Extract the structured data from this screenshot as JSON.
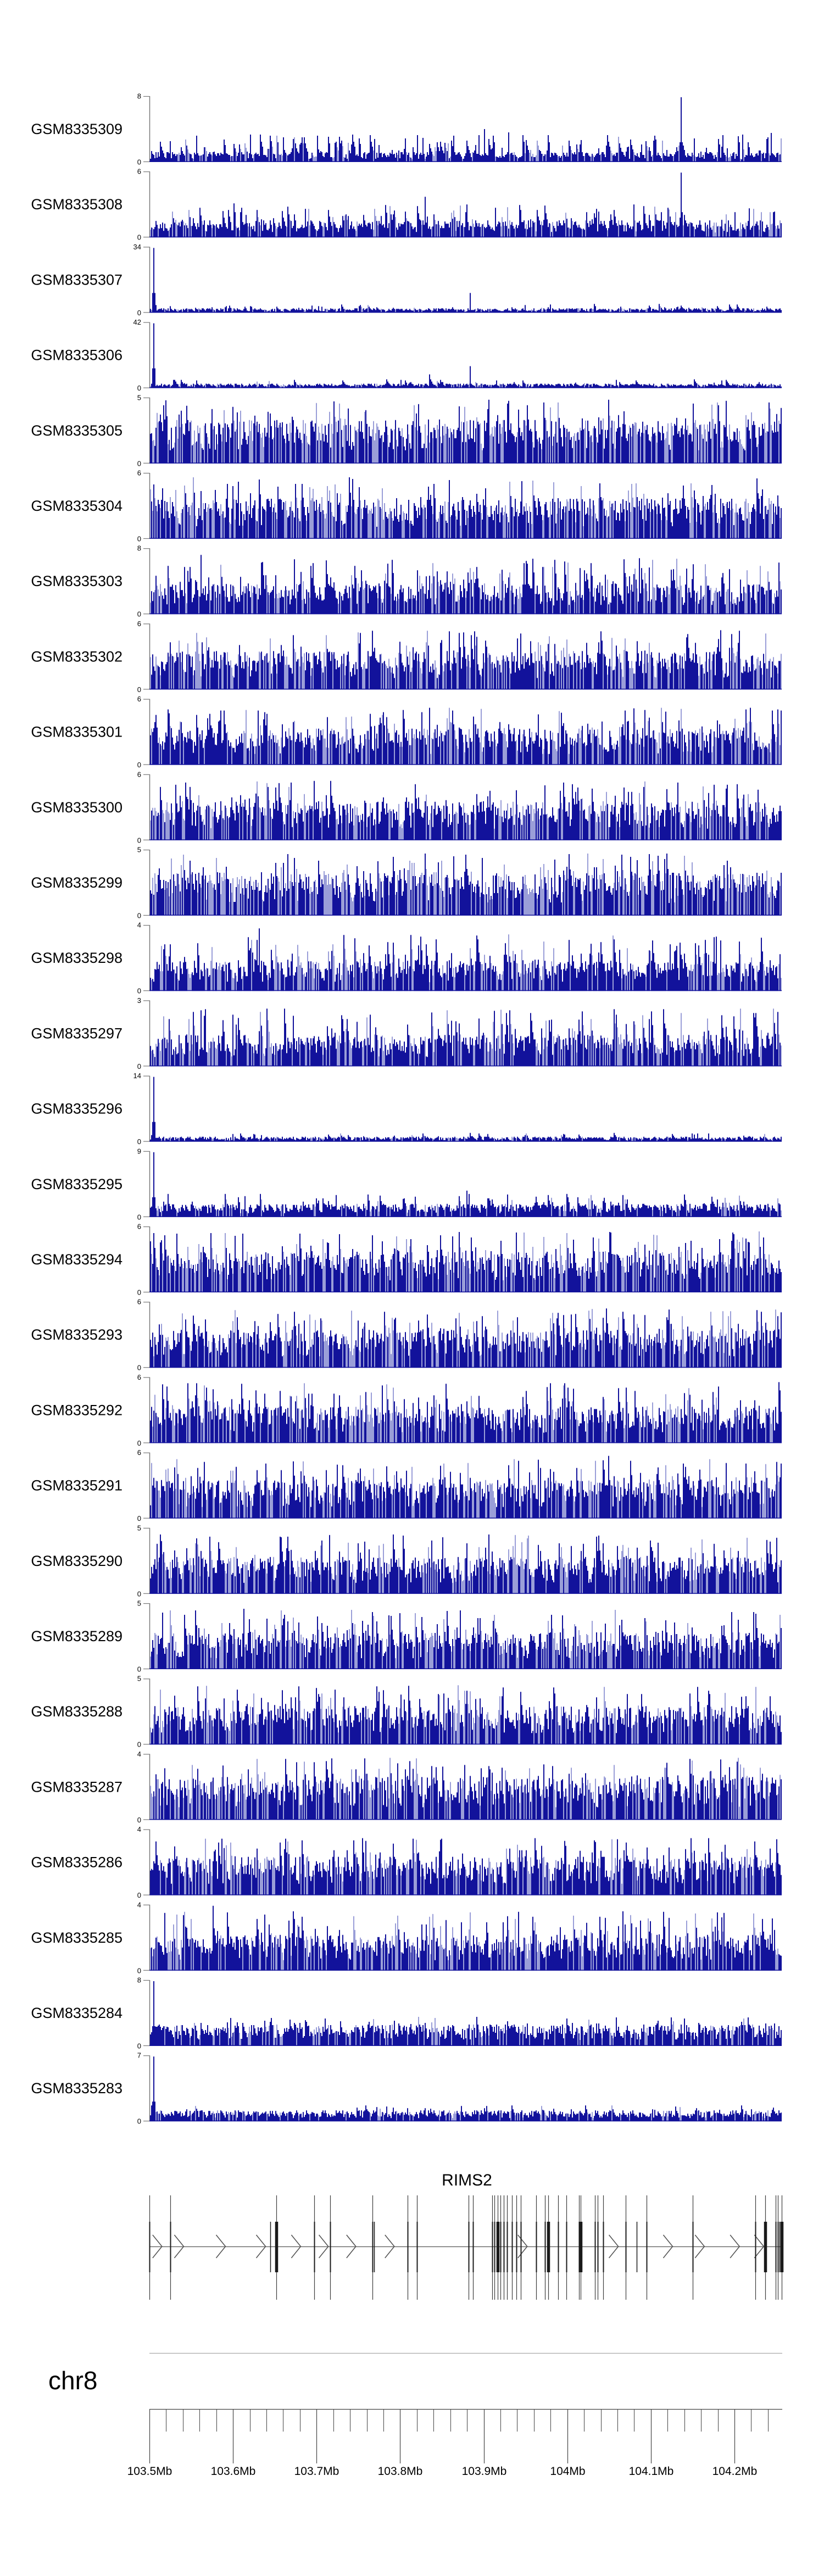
{
  "figure": {
    "background": "#ffffff"
  },
  "region": {
    "chrom_label": "chr8",
    "start_mb": 103.5,
    "end_mb": 104.2565
  },
  "ruler": {
    "major_tick_labels": [
      "103.5Mb",
      "103.6Mb",
      "103.7Mb",
      "103.8Mb",
      "103.9Mb",
      "104Mb",
      "104.1Mb",
      "104.2Mb"
    ],
    "major_tick_mb": [
      103.5,
      103.6,
      103.7,
      103.8,
      103.9,
      104.0,
      104.1,
      104.2
    ],
    "minor_step_mb": 0.02
  },
  "gene": {
    "name": "RIMS2",
    "strand": "+",
    "exons": [
      {
        "mb": 103.5,
        "type": "tall"
      },
      {
        "mb": 103.525,
        "type": "tall"
      },
      {
        "mb": 103.6446,
        "type": "short"
      },
      {
        "mb": 103.652,
        "type": "thick"
      },
      {
        "mb": 103.697,
        "type": "tall"
      },
      {
        "mb": 103.716,
        "type": "tall"
      },
      {
        "mb": 103.767,
        "type": "tall"
      },
      {
        "mb": 103.769,
        "type": "short"
      },
      {
        "mb": 103.809,
        "type": "tall"
      },
      {
        "mb": 103.82,
        "type": "tall"
      },
      {
        "mb": 103.882,
        "type": "tall"
      },
      {
        "mb": 103.887,
        "type": "tall"
      },
      {
        "mb": 103.91,
        "type": "tall"
      },
      {
        "mb": 103.913,
        "type": "tall"
      },
      {
        "mb": 103.917,
        "type": "thick"
      },
      {
        "mb": 103.92,
        "type": "tall"
      },
      {
        "mb": 103.924,
        "type": "tall"
      },
      {
        "mb": 103.928,
        "type": "tall"
      },
      {
        "mb": 103.934,
        "type": "tall"
      },
      {
        "mb": 103.939,
        "type": "tall"
      },
      {
        "mb": 103.944,
        "type": "tall"
      },
      {
        "mb": 103.963,
        "type": "tall"
      },
      {
        "mb": 103.973,
        "type": "tall"
      },
      {
        "mb": 103.977,
        "type": "thick"
      },
      {
        "mb": 103.989,
        "type": "tall"
      },
      {
        "mb": 103.999,
        "type": "tall"
      },
      {
        "mb": 104.014,
        "type": "tall"
      },
      {
        "mb": 104.016,
        "type": "thick"
      },
      {
        "mb": 104.033,
        "type": "tall"
      },
      {
        "mb": 104.036,
        "type": "tall"
      },
      {
        "mb": 104.043,
        "type": "tall"
      },
      {
        "mb": 104.07,
        "type": "tall"
      },
      {
        "mb": 104.083,
        "type": "short"
      },
      {
        "mb": 104.095,
        "type": "tall"
      },
      {
        "mb": 104.15,
        "type": "tall"
      },
      {
        "mb": 104.225,
        "type": "tall"
      },
      {
        "mb": 104.237,
        "type": "thick"
      },
      {
        "mb": 104.249,
        "type": "tall"
      },
      {
        "mb": 104.252,
        "type": "tall"
      },
      {
        "mb": 104.254,
        "type": "short"
      },
      {
        "mb": 104.2565,
        "type": "thick"
      }
    ],
    "arrows_mb": [
      103.515,
      103.541,
      103.591,
      103.639,
      103.681,
      103.714,
      103.747,
      103.793,
      103.952,
      104.061,
      104.126,
      104.164,
      104.206,
      104.235
    ]
  },
  "chart_data": {
    "type": "area",
    "title": "",
    "xlabel": "chr8 position (Mb)",
    "ylabel": "signal",
    "x_axis": {
      "start_mb": 103.5,
      "end_mb": 104.2565,
      "tick_labels": [
        "103.5Mb",
        "103.6Mb",
        "103.7Mb",
        "103.8Mb",
        "103.9Mb",
        "104Mb",
        "104.1Mb",
        "104.2Mb"
      ]
    },
    "tracks": [
      {
        "label": "GSM8335309",
        "ymin": 0,
        "ymax": 8,
        "profile": {
          "base": 0.1,
          "spike_prob": 0.22,
          "spike_max": 0.38,
          "light_prob": 0.15
        },
        "peaks": [
          {
            "mb": 104.137,
            "frac": 1.0
          },
          {
            "mb": 103.9,
            "frac": 0.5
          },
          {
            "mb": 103.93,
            "frac": 0.45
          },
          {
            "mb": 103.62,
            "frac": 0.42
          },
          {
            "mb": 103.7,
            "frac": 0.4
          },
          {
            "mb": 104.21,
            "frac": 0.42
          },
          {
            "mb": 104.245,
            "frac": 0.44
          },
          {
            "mb": 103.555,
            "frac": 0.4
          }
        ]
      },
      {
        "label": "GSM8335308",
        "ymin": 0,
        "ymax": 6,
        "profile": {
          "base": 0.17,
          "spike_prob": 0.25,
          "spike_max": 0.45,
          "light_prob": 0.18
        },
        "peaks": [
          {
            "mb": 104.137,
            "frac": 1.0
          },
          {
            "mb": 103.83,
            "frac": 0.62
          },
          {
            "mb": 103.88,
            "frac": 0.5
          },
          {
            "mb": 103.6,
            "frac": 0.52
          },
          {
            "mb": 104.08,
            "frac": 0.5
          },
          {
            "mb": 103.61,
            "frac": 0.45
          }
        ]
      },
      {
        "label": "GSM8335307",
        "ymin": 0,
        "ymax": 34,
        "profile": {
          "base": 0.045,
          "spike_prob": 0.1,
          "spike_max": 0.12,
          "light_prob": 0.1
        },
        "peaks": [
          {
            "mb": 103.504,
            "frac": 1.0
          },
          {
            "mb": 103.883,
            "frac": 0.3
          },
          {
            "mb": 103.95,
            "frac": 0.12
          },
          {
            "mb": 103.62,
            "frac": 0.1
          }
        ]
      },
      {
        "label": "GSM8335306",
        "ymin": 0,
        "ymax": 42,
        "profile": {
          "base": 0.045,
          "spike_prob": 0.1,
          "spike_max": 0.12,
          "light_prob": 0.1
        },
        "peaks": [
          {
            "mb": 103.504,
            "frac": 1.0
          },
          {
            "mb": 103.883,
            "frac": 0.33
          },
          {
            "mb": 103.835,
            "frac": 0.21
          },
          {
            "mb": 104.23,
            "frac": 0.09
          }
        ]
      },
      {
        "label": "GSM8335305",
        "ymin": 0,
        "ymax": 5,
        "profile": {
          "base": 0.43,
          "spike_prob": 0.3,
          "spike_max": 0.88,
          "light_prob": 0.33
        },
        "peaks": [
          {
            "mb": 103.93,
            "frac": 0.95
          }
        ]
      },
      {
        "label": "GSM8335304",
        "ymin": 0,
        "ymax": 6,
        "profile": {
          "base": 0.4,
          "spike_prob": 0.28,
          "spike_max": 0.85,
          "light_prob": 0.32
        },
        "peaks": []
      },
      {
        "label": "GSM8335303",
        "ymin": 0,
        "ymax": 8,
        "profile": {
          "base": 0.3,
          "spike_prob": 0.25,
          "spike_max": 0.78,
          "light_prob": 0.28
        },
        "peaks": [
          {
            "mb": 103.56,
            "frac": 0.9
          }
        ]
      },
      {
        "label": "GSM8335302",
        "ymin": 0,
        "ymax": 6,
        "profile": {
          "base": 0.38,
          "spike_prob": 0.27,
          "spike_max": 0.82,
          "light_prob": 0.3
        },
        "peaks": []
      },
      {
        "label": "GSM8335301",
        "ymin": 0,
        "ymax": 6,
        "profile": {
          "base": 0.36,
          "spike_prob": 0.27,
          "spike_max": 0.8,
          "light_prob": 0.3
        },
        "peaks": []
      },
      {
        "label": "GSM8335300",
        "ymin": 0,
        "ymax": 6,
        "profile": {
          "base": 0.38,
          "spike_prob": 0.28,
          "spike_max": 0.82,
          "light_prob": 0.3
        },
        "peaks": []
      },
      {
        "label": "GSM8335299",
        "ymin": 0,
        "ymax": 5,
        "profile": {
          "base": 0.42,
          "spike_prob": 0.3,
          "spike_max": 0.86,
          "light_prob": 0.33
        },
        "peaks": []
      },
      {
        "label": "GSM8335298",
        "ymin": 0,
        "ymax": 4,
        "profile": {
          "base": 0.3,
          "spike_prob": 0.24,
          "spike_max": 0.78,
          "light_prob": 0.28
        },
        "peaks": [
          {
            "mb": 103.63,
            "frac": 0.95
          }
        ]
      },
      {
        "label": "GSM8335297",
        "ymin": 0,
        "ymax": 3,
        "profile": {
          "base": 0.31,
          "spike_prob": 0.25,
          "spike_max": 0.8,
          "light_prob": 0.28
        },
        "peaks": [
          {
            "mb": 103.56,
            "frac": 0.85
          }
        ]
      },
      {
        "label": "GSM8335296",
        "ymin": 0,
        "ymax": 14,
        "profile": {
          "base": 0.05,
          "spike_prob": 0.08,
          "spike_max": 0.12,
          "light_prob": 0.1
        },
        "peaks": [
          {
            "mb": 103.504,
            "frac": 1.0
          },
          {
            "mb": 103.883,
            "frac": 0.13
          },
          {
            "mb": 103.95,
            "frac": 0.1
          }
        ]
      },
      {
        "label": "GSM8335295",
        "ymin": 0,
        "ymax": 9,
        "profile": {
          "base": 0.13,
          "spike_prob": 0.18,
          "spike_max": 0.32,
          "light_prob": 0.15
        },
        "peaks": [
          {
            "mb": 103.504,
            "frac": 1.0
          },
          {
            "mb": 103.88,
            "frac": 0.4
          },
          {
            "mb": 104.0,
            "frac": 0.35
          }
        ]
      },
      {
        "label": "GSM8335294",
        "ymin": 0,
        "ymax": 6,
        "profile": {
          "base": 0.4,
          "spike_prob": 0.28,
          "spike_max": 0.84,
          "light_prob": 0.31
        },
        "peaks": []
      },
      {
        "label": "GSM8335293",
        "ymin": 0,
        "ymax": 6,
        "profile": {
          "base": 0.38,
          "spike_prob": 0.27,
          "spike_max": 0.82,
          "light_prob": 0.3
        },
        "peaks": []
      },
      {
        "label": "GSM8335292",
        "ymin": 0,
        "ymax": 6,
        "profile": {
          "base": 0.36,
          "spike_prob": 0.27,
          "spike_max": 0.84,
          "light_prob": 0.3
        },
        "peaks": []
      },
      {
        "label": "GSM8335291",
        "ymin": 0,
        "ymax": 6,
        "profile": {
          "base": 0.38,
          "spike_prob": 0.27,
          "spike_max": 0.82,
          "light_prob": 0.3
        },
        "peaks": [
          {
            "mb": 104.05,
            "frac": 0.95
          }
        ]
      },
      {
        "label": "GSM8335290",
        "ymin": 0,
        "ymax": 5,
        "profile": {
          "base": 0.36,
          "spike_prob": 0.26,
          "spike_max": 0.82,
          "light_prob": 0.3
        },
        "peaks": []
      },
      {
        "label": "GSM8335289",
        "ymin": 0,
        "ymax": 5,
        "profile": {
          "base": 0.36,
          "spike_prob": 0.27,
          "spike_max": 0.84,
          "light_prob": 0.3
        },
        "peaks": []
      },
      {
        "label": "GSM8335288",
        "ymin": 0,
        "ymax": 5,
        "profile": {
          "base": 0.38,
          "spike_prob": 0.27,
          "spike_max": 0.82,
          "light_prob": 0.3
        },
        "peaks": []
      },
      {
        "label": "GSM8335287",
        "ymin": 0,
        "ymax": 4,
        "profile": {
          "base": 0.42,
          "spike_prob": 0.29,
          "spike_max": 0.86,
          "light_prob": 0.32
        },
        "peaks": []
      },
      {
        "label": "GSM8335286",
        "ymin": 0,
        "ymax": 4,
        "profile": {
          "base": 0.38,
          "spike_prob": 0.26,
          "spike_max": 0.8,
          "light_prob": 0.3
        },
        "peaks": [
          {
            "mb": 103.53,
            "frac": 0.55
          }
        ]
      },
      {
        "label": "GSM8335285",
        "ymin": 0,
        "ymax": 4,
        "profile": {
          "base": 0.35,
          "spike_prob": 0.26,
          "spike_max": 0.82,
          "light_prob": 0.3
        },
        "peaks": [
          {
            "mb": 103.575,
            "frac": 1.0
          }
        ]
      },
      {
        "label": "GSM8335284",
        "ymin": 0,
        "ymax": 8,
        "profile": {
          "base": 0.21,
          "spike_prob": 0.22,
          "spike_max": 0.4,
          "light_prob": 0.2
        },
        "peaks": [
          {
            "mb": 103.504,
            "frac": 1.0
          },
          {
            "mb": 103.56,
            "frac": 0.35
          }
        ]
      },
      {
        "label": "GSM8335283",
        "ymin": 0,
        "ymax": 7,
        "profile": {
          "base": 0.11,
          "spike_prob": 0.15,
          "spike_max": 0.22,
          "light_prob": 0.14
        },
        "peaks": [
          {
            "mb": 103.504,
            "frac": 1.0
          }
        ]
      }
    ]
  },
  "colors": {
    "signal_dark": "#12129b",
    "signal_light": "#9a9ed8",
    "axis": "#787878",
    "text": "#000000",
    "gene_line": "#555555",
    "exon": "#1a1a1a",
    "exon_light": "#3c3c3c",
    "ruler": "#444444",
    "separator": "#aaaaaa"
  }
}
